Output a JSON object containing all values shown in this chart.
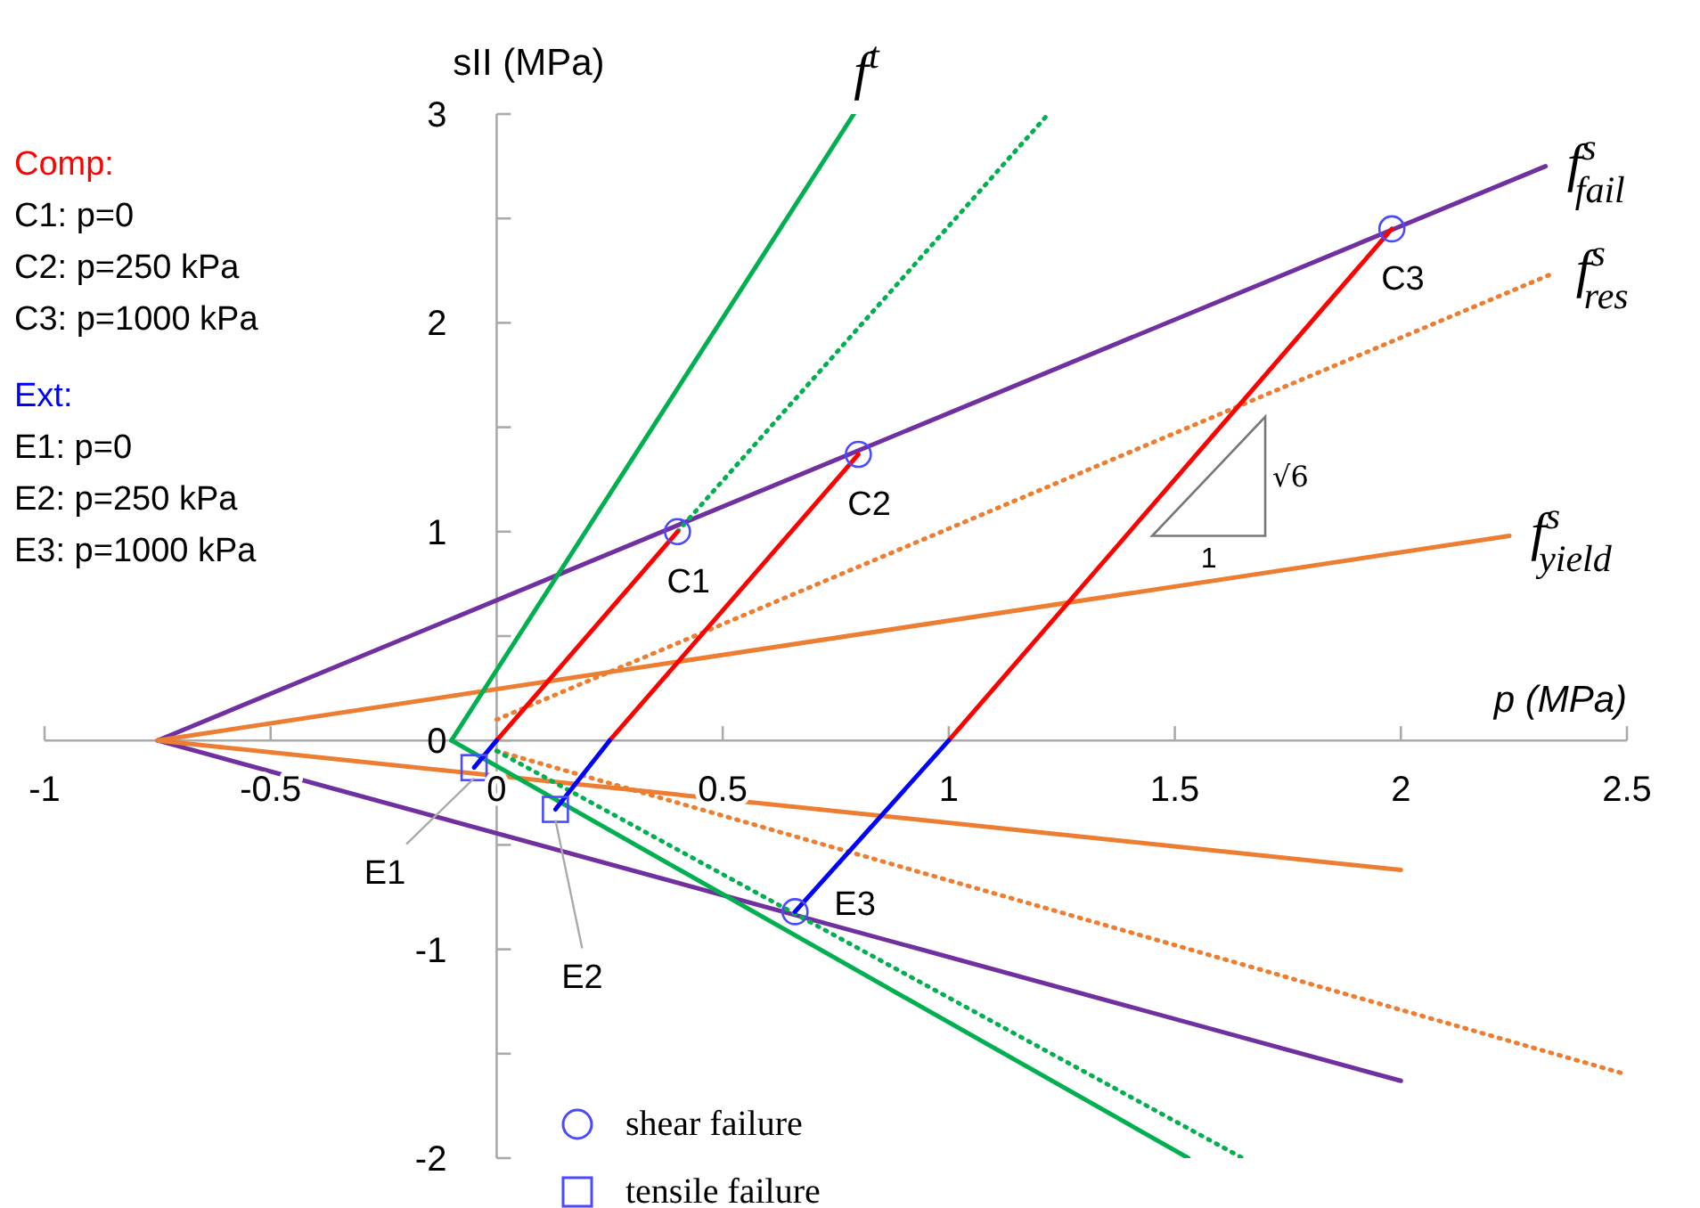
{
  "chart_data": {
    "type": "line",
    "xlabel": "p  (MPa)",
    "ylabel": "sII  (MPa)",
    "xlim": [
      -1,
      2.5
    ],
    "ylim": [
      -2,
      3
    ],
    "xticks": [
      -1,
      -0.5,
      0,
      0.5,
      1,
      1.5,
      2,
      2.5
    ],
    "yticks": [
      -2,
      {
        "value": -1.5,
        "label": null
      },
      -1,
      {
        "value": -0.5,
        "label": null
      },
      0,
      {
        "value": 0.5,
        "label": null
      },
      1,
      {
        "value": 1.5,
        "label": null
      },
      2,
      {
        "value": 2.5,
        "label": null
      },
      3
    ],
    "legend": "bottom",
    "annotations": [
      "Comp:",
      "C1: p=0",
      "C2: p=250 kPa",
      "C3: p=1000 kPa",
      "Ext:",
      "E1: p=0",
      "E2: p=250 kPa",
      "E3: p=1000 kPa",
      "1",
      "√6",
      {
        "text": "C1",
        "x": 0.4,
        "y": 1.0
      },
      {
        "text": "C2",
        "x": 0.8,
        "y": 1.37
      },
      {
        "text": "C3",
        "x": 1.98,
        "y": 2.45
      },
      {
        "text": "E3",
        "x": 0.66,
        "y": -0.82
      },
      {
        "text": "E1",
        "x": -0.05,
        "y": -0.13
      },
      {
        "text": "E2",
        "x": 0.13,
        "y": -0.33
      }
    ],
    "series": [
      {
        "name": "f$^{s}$$_{fail}$",
        "color": "#7030a0",
        "x": [
          -0.75,
          2.32
        ],
        "values": [
          0,
          2.75
        ]
      },
      {
        "color": "#7030a0",
        "x": [
          -0.75,
          2
        ],
        "values": [
          0,
          -1.63
        ]
      },
      {
        "name": "f$^{s}$$_{yield}$",
        "color": "#ed7d31",
        "x": [
          -0.75,
          2.24
        ],
        "values": [
          0,
          0.98
        ]
      },
      {
        "color": "#ed7d31",
        "x": [
          -0.75,
          2
        ],
        "values": [
          0,
          -0.62
        ]
      },
      {
        "name": "f$^{s}$$_{res}$",
        "color": "#ed7d31",
        "line_style": "dotted",
        "x": [
          0,
          2.34
        ],
        "values": [
          0.1,
          2.24
        ]
      },
      {
        "color": "#ed7d31",
        "line_style": "dotted",
        "x": [
          0,
          2.5
        ],
        "values": [
          -0.05,
          -1.6
        ]
      },
      {
        "name": "f$^{t}$",
        "color": "#00b050",
        "x": [
          -0.1,
          0.79
        ],
        "values": [
          0,
          3
        ]
      },
      {
        "color": "#00b050",
        "x": [
          -0.1,
          1.53
        ],
        "values": [
          0,
          -2
        ]
      },
      {
        "color": "#00b050",
        "line_style": "dotted",
        "x": [
          0.4,
          1.22
        ],
        "values": [
          1.0,
          3
        ]
      },
      {
        "color": "#00b050",
        "line_style": "dotted",
        "x": [
          0,
          1.65
        ],
        "values": [
          -0.05,
          -2
        ]
      },
      {
        "color": "#ff0000",
        "x": [
          0,
          0.4
        ],
        "values": [
          0,
          1.0
        ]
      },
      {
        "color": "#ff0000",
        "x": [
          0.25,
          0.8
        ],
        "values": [
          0,
          1.37
        ]
      },
      {
        "color": "#ff0000",
        "x": [
          1,
          1.98
        ],
        "values": [
          0,
          2.45
        ]
      },
      {
        "color": "#0000ff",
        "x": [
          0,
          -0.05
        ],
        "values": [
          0,
          -0.13
        ]
      },
      {
        "color": "#0000ff",
        "x": [
          0.25,
          0.13
        ],
        "values": [
          0,
          -0.33
        ]
      },
      {
        "color": "#0000ff",
        "x": [
          1,
          0.66
        ],
        "values": [
          0,
          -0.82
        ]
      },
      {
        "type": "scatter",
        "name": "shear failure",
        "color": "#4a4aff",
        "marker": "circle",
        "x": [
          0.4,
          0.8,
          1.98,
          0.66
        ],
        "values": [
          1.0,
          1.37,
          2.45,
          -0.82
        ]
      },
      {
        "type": "scatter",
        "name": "tensile failure",
        "color": "#4a4aff",
        "marker": "square",
        "x": [
          -0.05,
          0.13
        ],
        "values": [
          -0.13,
          -0.33
        ]
      }
    ]
  }
}
